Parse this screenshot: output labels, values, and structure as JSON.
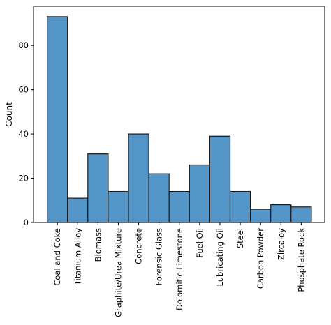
{
  "chart_data": {
    "type": "bar",
    "categories": [
      "Coal and Coke",
      "Titanium Alloy",
      "Biomass",
      "Graphite/Urea Mixture",
      "Concrete",
      "Forensic Glass",
      "Dolomitic Limestone",
      "Fuel Oil",
      "Lubricating Oil",
      "Steel",
      "Carbon Powder",
      "Zircaloy",
      "Phosphate Rock"
    ],
    "values": [
      93,
      11,
      31,
      14,
      40,
      22,
      14,
      26,
      39,
      14,
      6,
      8,
      7
    ],
    "xlabel": "",
    "ylabel": "Count",
    "ylim": [
      0,
      97.7
    ],
    "yticks": [
      0,
      20,
      40,
      60,
      80
    ],
    "grid": false,
    "colors": {
      "bar_fill": "#5596c8",
      "bar_edge": "#1a1a1a"
    }
  }
}
